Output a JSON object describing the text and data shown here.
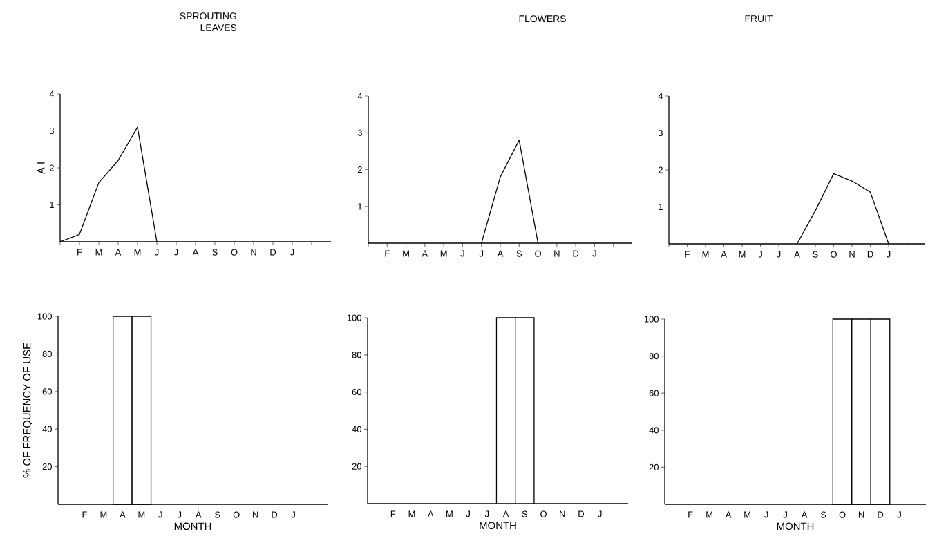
{
  "chart_data": [
    {
      "type": "line",
      "title": "SPROUTING LEAVES",
      "ylabel": "A I",
      "categories": [
        null,
        "F",
        "M",
        "A",
        "M",
        "J",
        "J",
        "A",
        "S",
        "O",
        "N",
        "D",
        "J",
        null
      ],
      "values": [
        0,
        0.2,
        1.6,
        2.2,
        3.1,
        0,
        null,
        null,
        null,
        null,
        null,
        null,
        null,
        null
      ],
      "color": "#000000",
      "marker": "none",
      "ylim": [
        0,
        4
      ],
      "yticks": [
        1,
        2,
        3,
        4
      ]
    },
    {
      "type": "line",
      "title": "FLOWERS",
      "categories": [
        null,
        "F",
        "M",
        "A",
        "M",
        "J",
        "J",
        "A",
        "S",
        "O",
        "N",
        "D",
        "J",
        null
      ],
      "values": [
        null,
        null,
        null,
        null,
        null,
        null,
        0,
        1.8,
        2.8,
        0,
        null,
        null,
        null,
        null
      ],
      "color": "#000000",
      "marker": "none",
      "ylim": [
        0,
        4
      ],
      "yticks": [
        1,
        2,
        3,
        4
      ]
    },
    {
      "type": "line",
      "title": "FRUIT",
      "categories": [
        null,
        "F",
        "M",
        "A",
        "M",
        "J",
        "J",
        "A",
        "S",
        "O",
        "N",
        "D",
        "J",
        null
      ],
      "values": [
        null,
        null,
        null,
        null,
        null,
        null,
        null,
        0,
        0.9,
        1.9,
        1.7,
        1.4,
        0,
        null
      ],
      "color": "#000000",
      "marker": "none",
      "ylim": [
        0,
        4
      ],
      "yticks": [
        1,
        2,
        3,
        4
      ]
    },
    {
      "type": "bar",
      "ylabel": "% OF FREQUENCY OF USE",
      "xlabel": "MONTH",
      "categories": [
        null,
        "F",
        "M",
        "A",
        "M",
        "J",
        "J",
        "A",
        "S",
        "O",
        "N",
        "D",
        "J"
      ],
      "values": [
        null,
        null,
        null,
        100,
        100,
        null,
        null,
        null,
        null,
        null,
        null,
        null,
        null
      ],
      "color": "#ffffff",
      "ylim": [
        0,
        100
      ],
      "yticks": [
        20,
        40,
        60,
        80,
        100
      ]
    },
    {
      "type": "bar",
      "xlabel": "MONTH",
      "categories": [
        null,
        "F",
        "M",
        "A",
        "M",
        "J",
        "J",
        "A",
        "S",
        "O",
        "N",
        "D",
        "J"
      ],
      "values": [
        null,
        null,
        null,
        null,
        null,
        null,
        null,
        100,
        100,
        null,
        null,
        null,
        null
      ],
      "color": "#ffffff",
      "ylim": [
        0,
        100
      ],
      "yticks": [
        20,
        40,
        60,
        80,
        100
      ]
    },
    {
      "type": "bar",
      "xlabel": "MONTH",
      "categories": [
        null,
        "F",
        "M",
        "A",
        "M",
        "J",
        "J",
        "A",
        "S",
        "O",
        "N",
        "D",
        "J"
      ],
      "values": [
        null,
        null,
        null,
        null,
        null,
        null,
        null,
        null,
        null,
        100,
        100,
        100,
        null
      ],
      "color": "#ffffff",
      "ylim": [
        0,
        100
      ],
      "yticks": [
        20,
        40,
        60,
        80,
        100
      ]
    }
  ]
}
